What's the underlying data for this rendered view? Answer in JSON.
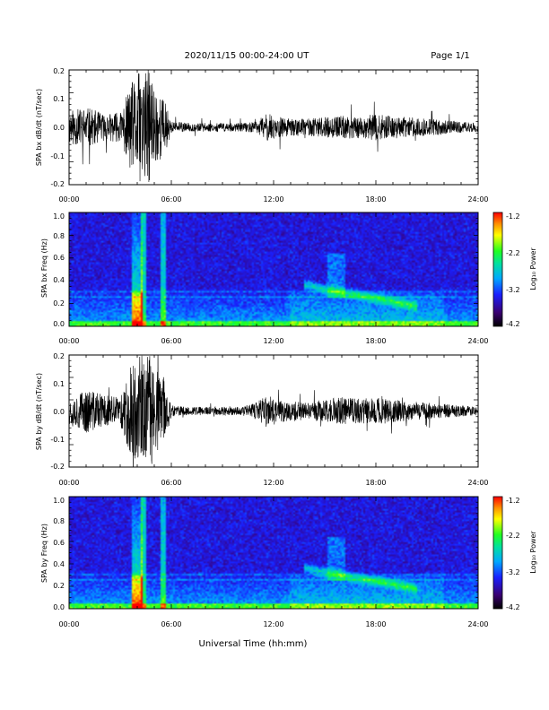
{
  "header": {
    "title": "2020/11/15  00:00-24:00 UT",
    "page": "Page 1/1"
  },
  "x_axis_label": "Universal Time (hh:mm)",
  "chart_data": [
    {
      "type": "line",
      "ylabel": "SPA bx dB/dt (nT/sec)",
      "xlim": [
        0,
        24
      ],
      "ylim": [
        -0.2,
        0.2
      ],
      "xticks": [
        "00:00",
        "06:00",
        "12:00",
        "18:00",
        "24:00"
      ],
      "yticks": [
        "-0.2",
        "-0.1",
        "0.0",
        "0.1",
        "0.2"
      ],
      "envelope": {
        "hours": [
          0,
          1,
          2,
          3,
          3.6,
          4.2,
          4.8,
          5.2,
          5.6,
          6,
          7,
          8,
          9,
          10,
          11,
          11.6,
          12,
          12.5,
          13,
          14,
          15,
          16,
          17,
          18,
          19,
          20,
          21,
          22,
          23,
          24
        ],
        "amplitude": [
          0.06,
          0.07,
          0.05,
          0.05,
          0.15,
          0.2,
          0.2,
          0.12,
          0.1,
          0.02,
          0.015,
          0.015,
          0.015,
          0.015,
          0.02,
          0.05,
          0.04,
          0.035,
          0.03,
          0.03,
          0.035,
          0.04,
          0.04,
          0.045,
          0.04,
          0.035,
          0.03,
          0.025,
          0.02,
          0.015
        ]
      }
    },
    {
      "type": "heatmap",
      "ylabel": "SPA bx Freq (Hz)",
      "xlim": [
        0,
        24
      ],
      "ylim": [
        0,
        1.0
      ],
      "xticks": [
        "00:00",
        "06:00",
        "12:00",
        "18:00",
        "24:00"
      ],
      "yticks": [
        "0.0",
        "0.2",
        "0.4",
        "0.6",
        "0.8",
        "1.0"
      ],
      "colorbar": {
        "label": "Log₁₀ Power",
        "range": [
          -4.2,
          -1.2
        ],
        "ticks": [
          "-1.2",
          "-2.2",
          "-3.2",
          "-4.2"
        ]
      }
    },
    {
      "type": "line",
      "ylabel": "SPA by dB/dt (nT/sec)",
      "xlim": [
        0,
        24
      ],
      "ylim": [
        -0.2,
        0.2
      ],
      "xticks": [
        "00:00",
        "06:00",
        "12:00",
        "18:00",
        "24:00"
      ],
      "yticks": [
        "-0.2",
        "-0.1",
        "0.0",
        "0.1",
        "0.2"
      ],
      "envelope": {
        "hours": [
          0,
          1,
          2,
          3,
          3.6,
          4.2,
          4.8,
          5.2,
          5.6,
          6,
          7,
          8,
          9,
          10,
          11,
          11.6,
          12,
          12.5,
          13,
          14,
          15,
          16,
          17,
          18,
          19,
          20,
          21,
          22,
          23,
          24
        ],
        "amplitude": [
          0.05,
          0.08,
          0.06,
          0.05,
          0.16,
          0.2,
          0.2,
          0.14,
          0.12,
          0.02,
          0.015,
          0.015,
          0.015,
          0.015,
          0.03,
          0.06,
          0.05,
          0.04,
          0.035,
          0.035,
          0.04,
          0.05,
          0.045,
          0.05,
          0.04,
          0.035,
          0.03,
          0.025,
          0.02,
          0.015
        ]
      }
    },
    {
      "type": "heatmap",
      "ylabel": "SPA by Freq (Hz)",
      "xlim": [
        0,
        24
      ],
      "ylim": [
        0,
        1.0
      ],
      "xticks": [
        "00:00",
        "06:00",
        "12:00",
        "18:00",
        "24:00"
      ],
      "yticks": [
        "0.0",
        "0.2",
        "0.4",
        "0.6",
        "0.8",
        "1.0"
      ],
      "colorbar": {
        "label": "Log₁₀ Power",
        "range": [
          -4.2,
          -1.2
        ],
        "ticks": [
          "-1.2",
          "-2.2",
          "-3.2",
          "-4.2"
        ]
      }
    }
  ]
}
